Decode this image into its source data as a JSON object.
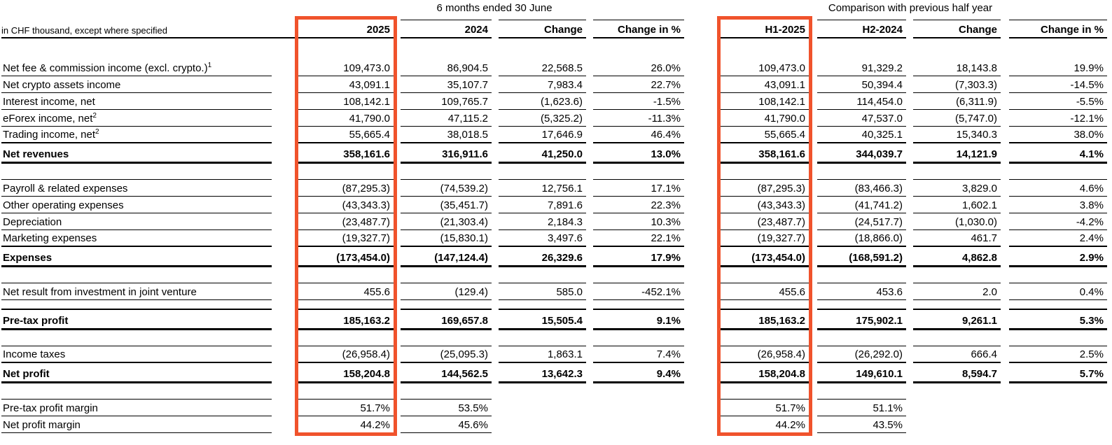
{
  "table": {
    "note": "in CHF thousand, except where specified",
    "groups": [
      {
        "title": "6 months ended 30 June"
      },
      {
        "title": "Comparison with previous half year"
      }
    ],
    "columns": [
      "2025",
      "2024",
      "Change",
      "Change in %",
      "H1-2025",
      "H2-2024",
      "Change",
      "Change in %"
    ],
    "rows": [
      {
        "type": "spacer_plain"
      },
      {
        "type": "data",
        "label": "Net fee & commission income (excl. crypto.)",
        "sup": "1",
        "values": [
          "109,473.0",
          "86,904.5",
          "22,568.5",
          "26.0%",
          "109,473.0",
          "91,329.2",
          "18,143.8",
          "19.9%"
        ]
      },
      {
        "type": "data",
        "label": "Net crypto assets income",
        "values": [
          "43,091.1",
          "35,107.7",
          "7,983.4",
          "22.7%",
          "43,091.1",
          "50,394.4",
          "(7,303.3)",
          "-14.5%"
        ]
      },
      {
        "type": "data",
        "label": "Interest income, net",
        "values": [
          "108,142.1",
          "109,765.7",
          "(1,623.6)",
          "-1.5%",
          "108,142.1",
          "114,454.0",
          "(6,311.9)",
          "-5.5%"
        ]
      },
      {
        "type": "data",
        "label": "eForex income, net",
        "sup": "2",
        "values": [
          "41,790.0",
          "47,115.2",
          "(5,325.2)",
          "-11.3%",
          "41,790.0",
          "47,537.0",
          "(5,747.0)",
          "-12.1%"
        ]
      },
      {
        "type": "data",
        "label": "Trading income, net",
        "sup": "2",
        "values": [
          "55,665.4",
          "38,018.5",
          "17,646.9",
          "46.4%",
          "55,665.4",
          "40,325.1",
          "15,340.3",
          "38.0%"
        ]
      },
      {
        "type": "total",
        "label": "Net revenues",
        "values": [
          "358,161.6",
          "316,911.6",
          "41,250.0",
          "13.0%",
          "358,161.6",
          "344,039.7",
          "14,121.9",
          "4.1%"
        ]
      },
      {
        "type": "spacer"
      },
      {
        "type": "data",
        "label": "Payroll & related expenses",
        "values": [
          "(87,295.3)",
          "(74,539.2)",
          "12,756.1",
          "17.1%",
          "(87,295.3)",
          "(83,466.3)",
          "3,829.0",
          "4.6%"
        ]
      },
      {
        "type": "data",
        "label": "Other operating expenses",
        "values": [
          "(43,343.3)",
          "(35,451.7)",
          "7,891.6",
          "22.3%",
          "(43,343.3)",
          "(41,741.2)",
          "1,602.1",
          "3.8%"
        ]
      },
      {
        "type": "data",
        "label": "Depreciation",
        "values": [
          "(23,487.7)",
          "(21,303.4)",
          "2,184.3",
          "10.3%",
          "(23,487.7)",
          "(24,517.7)",
          "(1,030.0)",
          "-4.2%"
        ]
      },
      {
        "type": "data",
        "label": "Marketing expenses",
        "values": [
          "(19,327.7)",
          "(15,830.1)",
          "3,497.6",
          "22.1%",
          "(19,327.7)",
          "(18,866.0)",
          "461.7",
          "2.4%"
        ]
      },
      {
        "type": "total",
        "label": "Expenses",
        "values": [
          "(173,454.0)",
          "(147,124.4)",
          "26,329.6",
          "17.9%",
          "(173,454.0)",
          "(168,591.2)",
          "4,862.8",
          "2.9%"
        ]
      },
      {
        "type": "spacer"
      },
      {
        "type": "data",
        "label": "Net result from investment in joint venture",
        "values": [
          "455.6",
          "(129.4)",
          "585.0",
          "-452.1%",
          "455.6",
          "453.6",
          "2.0",
          "0.4%"
        ]
      },
      {
        "type": "spacer_sm"
      },
      {
        "type": "total",
        "label": "Pre-tax profit",
        "values": [
          "185,163.2",
          "169,657.8",
          "15,505.4",
          "9.1%",
          "185,163.2",
          "175,902.1",
          "9,261.1",
          "5.3%"
        ]
      },
      {
        "type": "spacer"
      },
      {
        "type": "data",
        "label": "Income taxes",
        "values": [
          "(26,958.4)",
          "(25,095.3)",
          "1,863.1",
          "7.4%",
          "(26,958.4)",
          "(26,292.0)",
          "666.4",
          "2.5%"
        ]
      },
      {
        "type": "total",
        "label": "Net profit",
        "values": [
          "158,204.8",
          "144,562.5",
          "13,642.3",
          "9.4%",
          "158,204.8",
          "149,610.1",
          "8,594.7",
          "5.7%"
        ]
      },
      {
        "type": "spacer_margin"
      },
      {
        "type": "margin",
        "label": "Pre-tax profit margin",
        "values": [
          "51.7%",
          "53.5%",
          "",
          "",
          "51.7%",
          "51.1%",
          "",
          ""
        ]
      },
      {
        "type": "margin",
        "label": "Net profit margin",
        "values": [
          "44.2%",
          "45.6%",
          "",
          "",
          "44.2%",
          "43.5%",
          "",
          ""
        ]
      }
    ],
    "highlight": {
      "color": "#f0532c",
      "columns": [
        "c1",
        "c5"
      ]
    }
  }
}
